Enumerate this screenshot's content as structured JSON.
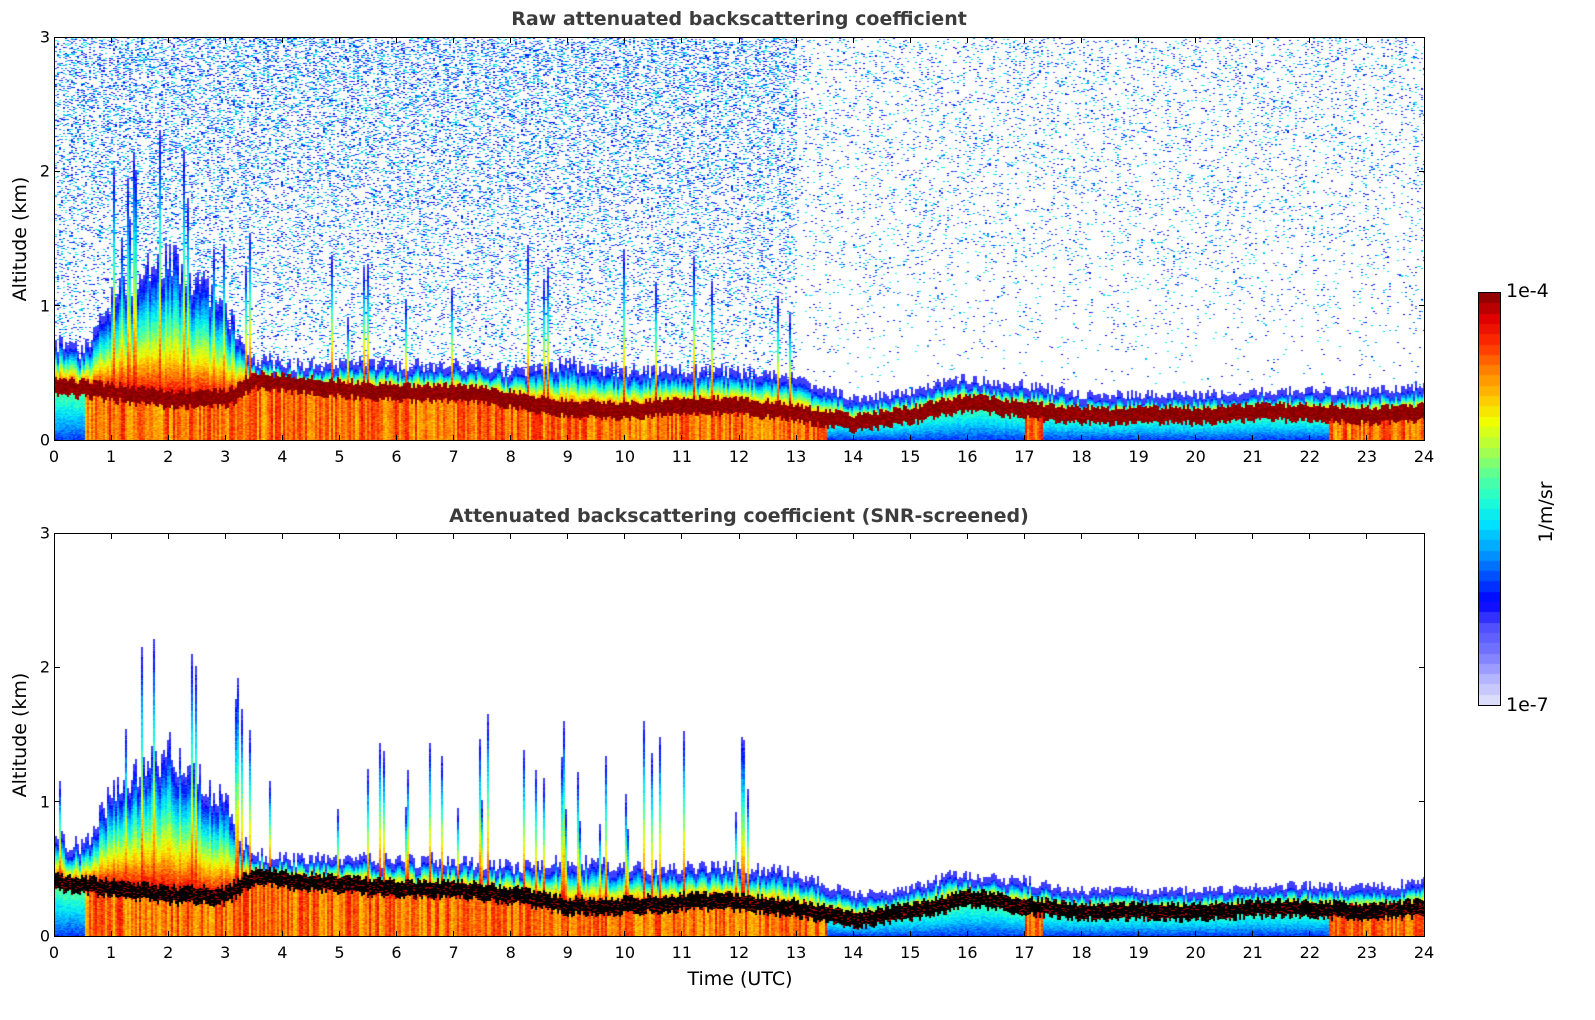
{
  "chart_data": [
    {
      "type": "heatmap",
      "title": "Raw attenuated backscattering coefficient",
      "xlabel": "",
      "ylabel": "Altitude (km)",
      "xlim": [
        0,
        24
      ],
      "ylim": [
        0,
        3
      ],
      "x_ticks": [
        "0",
        "1",
        "2",
        "3",
        "4",
        "5",
        "6",
        "7",
        "8",
        "9",
        "10",
        "11",
        "12",
        "13",
        "14",
        "15",
        "16",
        "17",
        "18",
        "19",
        "20",
        "21",
        "22",
        "23",
        "24"
      ],
      "y_ticks": [
        "0",
        "1",
        "2",
        "3"
      ],
      "variant": "raw",
      "boundary_layer_top_km": {
        "x": [
          0,
          0.5,
          1,
          2,
          3,
          3.4,
          4,
          5,
          6,
          7,
          8,
          9,
          10,
          11,
          12,
          13,
          14,
          15,
          15.8,
          17,
          18,
          19,
          20,
          21,
          22,
          23,
          24
        ],
        "y": [
          0.65,
          0.6,
          1.0,
          1.3,
          0.9,
          0.55,
          0.5,
          0.5,
          0.5,
          0.5,
          0.45,
          0.5,
          0.45,
          0.45,
          0.45,
          0.4,
          0.25,
          0.3,
          0.4,
          0.35,
          0.28,
          0.28,
          0.28,
          0.3,
          0.32,
          0.3,
          0.35
        ]
      },
      "peak_layer_km": {
        "x": [
          0,
          1,
          2,
          3,
          3.5,
          4,
          5,
          6,
          7,
          8,
          9,
          10,
          11,
          12,
          13,
          14,
          15,
          16,
          17,
          18,
          19,
          20,
          21,
          22,
          23,
          24
        ],
        "y": [
          0.4,
          0.35,
          0.3,
          0.3,
          0.45,
          0.42,
          0.38,
          0.35,
          0.35,
          0.3,
          0.22,
          0.22,
          0.25,
          0.25,
          0.2,
          0.12,
          0.18,
          0.28,
          0.22,
          0.18,
          0.18,
          0.18,
          0.2,
          0.2,
          0.18,
          0.2
        ]
      }
    },
    {
      "type": "heatmap",
      "title": "Attenuated backscattering coefficient (SNR-screened)",
      "xlabel": "Time (UTC)",
      "ylabel": "Altitude (km)",
      "xlim": [
        0,
        24
      ],
      "ylim": [
        0,
        3
      ],
      "x_ticks": [
        "0",
        "1",
        "2",
        "3",
        "4",
        "5",
        "6",
        "7",
        "8",
        "9",
        "10",
        "11",
        "12",
        "13",
        "14",
        "15",
        "16",
        "17",
        "18",
        "19",
        "20",
        "21",
        "22",
        "23",
        "24"
      ],
      "y_ticks": [
        "0",
        "1",
        "2",
        "3"
      ],
      "variant": "screened"
    }
  ],
  "colorbar": {
    "label": "1/m/sr",
    "max_label": "1e-4",
    "min_label": "1e-7",
    "scale": "log",
    "range": [
      1e-07,
      0.0001
    ],
    "colormap": "jet",
    "colors": [
      "#e6e6fa",
      "#b4b4ff",
      "#7878ff",
      "#5050ff",
      "#0000ff",
      "#0050ff",
      "#00a0ff",
      "#00e0ff",
      "#20ffd0",
      "#60ff90",
      "#b0ff40",
      "#f0ff00",
      "#ffc000",
      "#ff8000",
      "#ff3000",
      "#e00000",
      "#800000"
    ]
  }
}
